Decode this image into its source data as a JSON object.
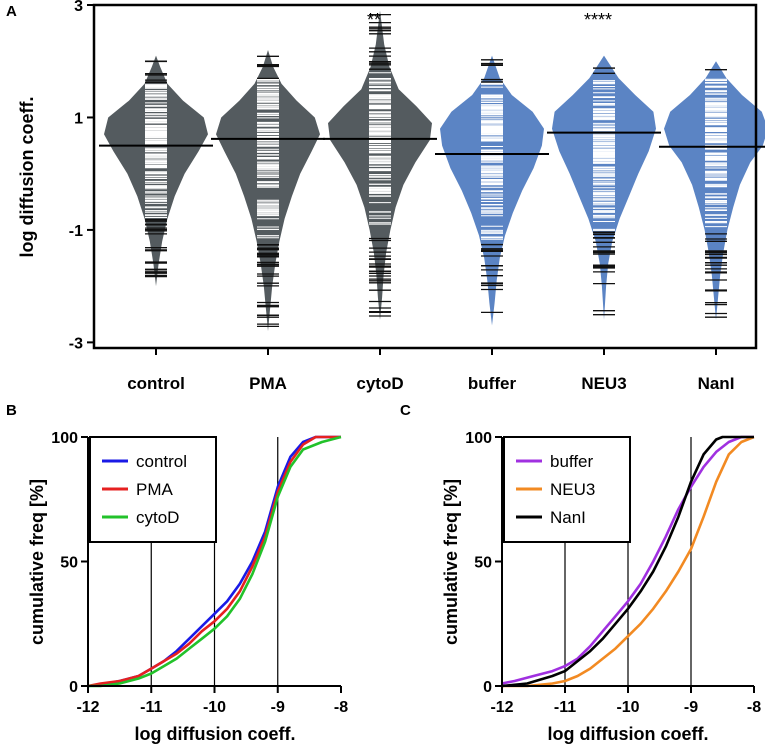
{
  "chart_data": [
    {
      "panel": "A",
      "type": "violin",
      "ylabel": "log diffusion coeff.",
      "ylim": [
        -3.1,
        3.0
      ],
      "yticks": [
        3,
        1,
        -1,
        -3
      ],
      "ytick_labels": [
        "3",
        "1",
        "-1",
        "-3"
      ],
      "categories": [
        "control",
        "PMA",
        "cytoD",
        "buffer",
        "NEU3",
        "NanI"
      ],
      "colors": [
        "#545b5f",
        "#545b5f",
        "#545b5f",
        "#5b84c4",
        "#5b84c4",
        "#5b84c4"
      ],
      "medians": [
        0.5,
        0.62,
        0.62,
        0.35,
        0.73,
        0.48
      ],
      "ranges": [
        [
          -2.0,
          2.1
        ],
        [
          -2.8,
          2.2
        ],
        [
          -2.6,
          2.9
        ],
        [
          -2.7,
          2.1
        ],
        [
          -2.6,
          2.1
        ],
        [
          -2.6,
          2.0
        ]
      ],
      "significance": [
        "",
        "",
        "**",
        "",
        "****",
        ""
      ],
      "shapes": [
        [
          [
            -2.0,
            0.0
          ],
          [
            -1.6,
            0.05
          ],
          [
            -1.2,
            0.12
          ],
          [
            -0.8,
            0.22
          ],
          [
            -0.4,
            0.36
          ],
          [
            0.0,
            0.55
          ],
          [
            0.4,
            0.82
          ],
          [
            0.7,
            1.0
          ],
          [
            1.0,
            0.92
          ],
          [
            1.3,
            0.52
          ],
          [
            1.6,
            0.22
          ],
          [
            1.9,
            0.08
          ],
          [
            2.1,
            0.0
          ]
        ],
        [
          [
            -2.8,
            0.0
          ],
          [
            -2.4,
            0.04
          ],
          [
            -2.0,
            0.08
          ],
          [
            -1.6,
            0.14
          ],
          [
            -1.2,
            0.22
          ],
          [
            -0.8,
            0.32
          ],
          [
            -0.4,
            0.46
          ],
          [
            0.0,
            0.62
          ],
          [
            0.4,
            0.84
          ],
          [
            0.7,
            1.0
          ],
          [
            1.0,
            0.9
          ],
          [
            1.3,
            0.55
          ],
          [
            1.6,
            0.26
          ],
          [
            1.9,
            0.1
          ],
          [
            2.2,
            0.0
          ]
        ],
        [
          [
            -2.6,
            0.0
          ],
          [
            -2.2,
            0.04
          ],
          [
            -1.8,
            0.07
          ],
          [
            -1.4,
            0.12
          ],
          [
            -1.0,
            0.2
          ],
          [
            -0.6,
            0.3
          ],
          [
            -0.2,
            0.45
          ],
          [
            0.2,
            0.68
          ],
          [
            0.6,
            0.96
          ],
          [
            0.9,
            1.0
          ],
          [
            1.2,
            0.7
          ],
          [
            1.5,
            0.36
          ],
          [
            1.9,
            0.18
          ],
          [
            2.3,
            0.08
          ],
          [
            2.9,
            0.0
          ]
        ],
        [
          [
            -2.7,
            0.0
          ],
          [
            -2.3,
            0.05
          ],
          [
            -1.9,
            0.09
          ],
          [
            -1.5,
            0.15
          ],
          [
            -1.1,
            0.25
          ],
          [
            -0.7,
            0.4
          ],
          [
            -0.3,
            0.58
          ],
          [
            0.1,
            0.8
          ],
          [
            0.5,
            0.96
          ],
          [
            0.8,
            1.0
          ],
          [
            1.1,
            0.78
          ],
          [
            1.4,
            0.38
          ],
          [
            1.7,
            0.15
          ],
          [
            2.1,
            0.0
          ]
        ],
        [
          [
            -2.6,
            0.0
          ],
          [
            -2.0,
            0.04
          ],
          [
            -1.6,
            0.08
          ],
          [
            -1.2,
            0.16
          ],
          [
            -0.8,
            0.3
          ],
          [
            -0.4,
            0.48
          ],
          [
            0.0,
            0.66
          ],
          [
            0.4,
            0.86
          ],
          [
            0.8,
            1.0
          ],
          [
            1.1,
            0.95
          ],
          [
            1.4,
            0.6
          ],
          [
            1.7,
            0.28
          ],
          [
            2.1,
            0.0
          ]
        ],
        [
          [
            -2.6,
            0.0
          ],
          [
            -2.2,
            0.04
          ],
          [
            -1.8,
            0.08
          ],
          [
            -1.4,
            0.14
          ],
          [
            -1.0,
            0.22
          ],
          [
            -0.6,
            0.33
          ],
          [
            -0.2,
            0.46
          ],
          [
            0.2,
            0.66
          ],
          [
            0.5,
            0.9
          ],
          [
            0.8,
            1.0
          ],
          [
            1.1,
            0.88
          ],
          [
            1.4,
            0.5
          ],
          [
            1.7,
            0.2
          ],
          [
            2.0,
            0.0
          ]
        ]
      ]
    },
    {
      "panel": "B",
      "type": "line",
      "xlabel": "log diffusion coeff.",
      "ylabel": "cumulative freq [%]",
      "xlim": [
        -12,
        -8
      ],
      "ylim": [
        0,
        100
      ],
      "xticks": [
        -12,
        -11,
        -10,
        -9,
        -8
      ],
      "xtick_labels": [
        "-12",
        "-11",
        "-10",
        "-9",
        "-8"
      ],
      "yticks": [
        0,
        50,
        100
      ],
      "ytick_labels": [
        "0",
        "50",
        "100"
      ],
      "vgrid": [
        -11,
        -10,
        -9
      ],
      "legend": "top-left",
      "series": [
        {
          "name": "control",
          "color": "#1a1ae6",
          "points": [
            [
              -12,
              0
            ],
            [
              -11.8,
              0.5
            ],
            [
              -11.5,
              2
            ],
            [
              -11.2,
              4
            ],
            [
              -11,
              7
            ],
            [
              -10.8,
              10
            ],
            [
              -10.6,
              14
            ],
            [
              -10.4,
              19
            ],
            [
              -10.2,
              24
            ],
            [
              -10,
              29
            ],
            [
              -9.8,
              34
            ],
            [
              -9.6,
              41
            ],
            [
              -9.4,
              50
            ],
            [
              -9.2,
              62
            ],
            [
              -9,
              80
            ],
            [
              -8.8,
              92
            ],
            [
              -8.6,
              98
            ],
            [
              -8.4,
              100
            ],
            [
              -8,
              100
            ]
          ]
        },
        {
          "name": "PMA",
          "color": "#e62020",
          "points": [
            [
              -12,
              0
            ],
            [
              -11.8,
              1
            ],
            [
              -11.5,
              2
            ],
            [
              -11.2,
              4
            ],
            [
              -11,
              7
            ],
            [
              -10.8,
              10
            ],
            [
              -10.6,
              13
            ],
            [
              -10.4,
              17
            ],
            [
              -10.2,
              22
            ],
            [
              -10,
              26
            ],
            [
              -9.8,
              31
            ],
            [
              -9.6,
              38
            ],
            [
              -9.4,
              48
            ],
            [
              -9.2,
              60
            ],
            [
              -9,
              78
            ],
            [
              -8.8,
              90
            ],
            [
              -8.6,
              97
            ],
            [
              -8.4,
              100
            ],
            [
              -8,
              100
            ]
          ]
        },
        {
          "name": "cytoD",
          "color": "#22c22a",
          "points": [
            [
              -12,
              0
            ],
            [
              -11.8,
              0
            ],
            [
              -11.5,
              1
            ],
            [
              -11.2,
              3
            ],
            [
              -11,
              5
            ],
            [
              -10.8,
              8
            ],
            [
              -10.6,
              11
            ],
            [
              -10.4,
              15
            ],
            [
              -10.2,
              19
            ],
            [
              -10,
              23
            ],
            [
              -9.8,
              28
            ],
            [
              -9.6,
              35
            ],
            [
              -9.4,
              45
            ],
            [
              -9.2,
              58
            ],
            [
              -9,
              76
            ],
            [
              -8.8,
              88
            ],
            [
              -8.6,
              95
            ],
            [
              -8.3,
              98
            ],
            [
              -8,
              100
            ]
          ]
        }
      ]
    },
    {
      "panel": "C",
      "type": "line",
      "xlabel": "log diffusion coeff.",
      "ylabel": "cumulative freq [%]",
      "xlim": [
        -12,
        -8
      ],
      "ylim": [
        0,
        100
      ],
      "xticks": [
        -12,
        -11,
        -10,
        -9,
        -8
      ],
      "xtick_labels": [
        "-12",
        "-11",
        "-10",
        "-9",
        "-8"
      ],
      "yticks": [
        0,
        50,
        100
      ],
      "ytick_labels": [
        "0",
        "50",
        "100"
      ],
      "vgrid": [
        -11,
        -10,
        -9
      ],
      "legend": "top-left",
      "series": [
        {
          "name": "buffer",
          "color": "#a030e0",
          "points": [
            [
              -12,
              1
            ],
            [
              -11.8,
              2
            ],
            [
              -11.5,
              4
            ],
            [
              -11.2,
              6
            ],
            [
              -11,
              8
            ],
            [
              -10.8,
              11
            ],
            [
              -10.6,
              16
            ],
            [
              -10.4,
              22
            ],
            [
              -10.2,
              28
            ],
            [
              -10,
              34
            ],
            [
              -9.8,
              41
            ],
            [
              -9.6,
              50
            ],
            [
              -9.4,
              60
            ],
            [
              -9.2,
              71
            ],
            [
              -9,
              80
            ],
            [
              -8.8,
              88
            ],
            [
              -8.6,
              94
            ],
            [
              -8.4,
              98
            ],
            [
              -8.2,
              100
            ],
            [
              -8,
              100
            ]
          ]
        },
        {
          "name": "NEU3",
          "color": "#f28a22",
          "points": [
            [
              -12,
              0
            ],
            [
              -11.6,
              0
            ],
            [
              -11.2,
              1
            ],
            [
              -11,
              2
            ],
            [
              -10.8,
              4
            ],
            [
              -10.6,
              7
            ],
            [
              -10.4,
              11
            ],
            [
              -10.2,
              15
            ],
            [
              -10,
              20
            ],
            [
              -9.8,
              25
            ],
            [
              -9.6,
              31
            ],
            [
              -9.4,
              38
            ],
            [
              -9.2,
              46
            ],
            [
              -9,
              55
            ],
            [
              -8.8,
              68
            ],
            [
              -8.6,
              82
            ],
            [
              -8.4,
              93
            ],
            [
              -8.2,
              98
            ],
            [
              -8,
              100
            ]
          ]
        },
        {
          "name": "NanI",
          "color": "#000000",
          "points": [
            [
              -12,
              0
            ],
            [
              -11.6,
              1
            ],
            [
              -11.2,
              4
            ],
            [
              -11,
              6
            ],
            [
              -10.8,
              10
            ],
            [
              -10.6,
              14
            ],
            [
              -10.4,
              19
            ],
            [
              -10.2,
              25
            ],
            [
              -10,
              31
            ],
            [
              -9.8,
              38
            ],
            [
              -9.6,
              46
            ],
            [
              -9.4,
              56
            ],
            [
              -9.2,
              68
            ],
            [
              -9,
              82
            ],
            [
              -8.8,
              93
            ],
            [
              -8.6,
              99
            ],
            [
              -8.5,
              100
            ],
            [
              -8,
              100
            ]
          ]
        }
      ]
    }
  ]
}
